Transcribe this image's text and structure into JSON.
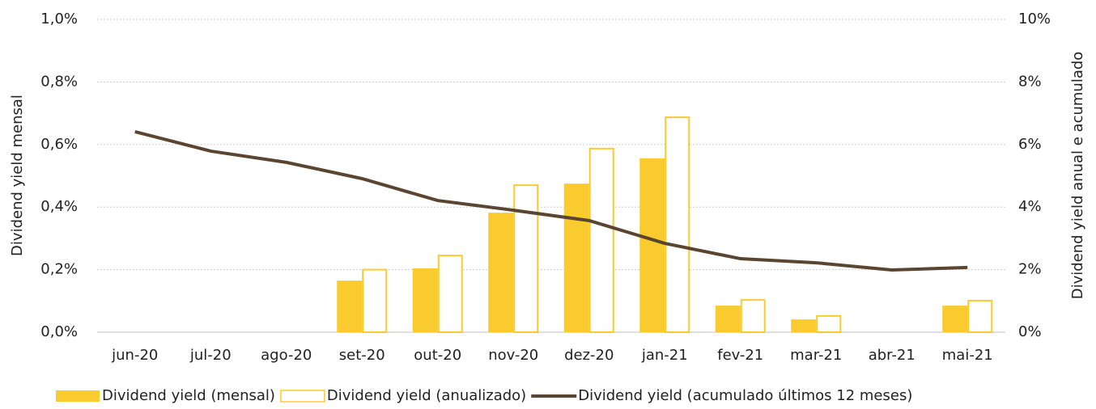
{
  "chart_data": {
    "type": "bar_line",
    "categories": [
      "jun-20",
      "jul-20",
      "ago-20",
      "set-20",
      "out-20",
      "nov-20",
      "dez-20",
      "jan-21",
      "fev-21",
      "mar-21",
      "abr-21",
      "mai-21"
    ],
    "ylabel": "Dividend yield mensal",
    "y2label": "Dividend yield anual e acumulado",
    "ylim": [
      0,
      1.0
    ],
    "yticks": [
      {
        "value": 0,
        "label": "0,0%"
      },
      {
        "value": 0.2,
        "label": "0,2%"
      },
      {
        "value": 0.4,
        "label": "0,4%"
      },
      {
        "value": 0.6,
        "label": "0,6%"
      },
      {
        "value": 0.8,
        "label": "0,8%"
      },
      {
        "value": 1.0,
        "label": "1,0%"
      }
    ],
    "y2lim": [
      0,
      10
    ],
    "y2ticks": [
      {
        "value": 0,
        "label": "0%"
      },
      {
        "value": 2,
        "label": "2%"
      },
      {
        "value": 4,
        "label": "4%"
      },
      {
        "value": 6,
        "label": "6%"
      },
      {
        "value": 8,
        "label": "8%"
      },
      {
        "value": 10,
        "label": "10%"
      }
    ],
    "grid": true,
    "legend": "bottom",
    "series": [
      {
        "name": "Dividend yield (mensal)",
        "kind": "bar",
        "style": "filled",
        "color": "#f9cb2f",
        "values": [
          0,
          0,
          0,
          0.165,
          0.204,
          0.382,
          0.475,
          0.556,
          0.085,
          0.041,
          0,
          0.085
        ]
      },
      {
        "name": "Dividend yield (anualizado)",
        "kind": "bar",
        "style": "outline",
        "color": "#f9cb2f",
        "axis": "y2",
        "values": [
          0,
          0,
          0,
          2.0,
          2.45,
          4.7,
          5.87,
          6.87,
          1.03,
          0.52,
          0,
          1.01
        ]
      },
      {
        "name": "Dividend yield (acumulado últimos 12 meses)",
        "kind": "line",
        "color": "#5a4530",
        "axis": "y2",
        "values": [
          6.41,
          5.79,
          5.43,
          4.91,
          4.21,
          3.9,
          3.57,
          2.84,
          2.35,
          2.22,
          1.99,
          2.07
        ]
      }
    ]
  }
}
